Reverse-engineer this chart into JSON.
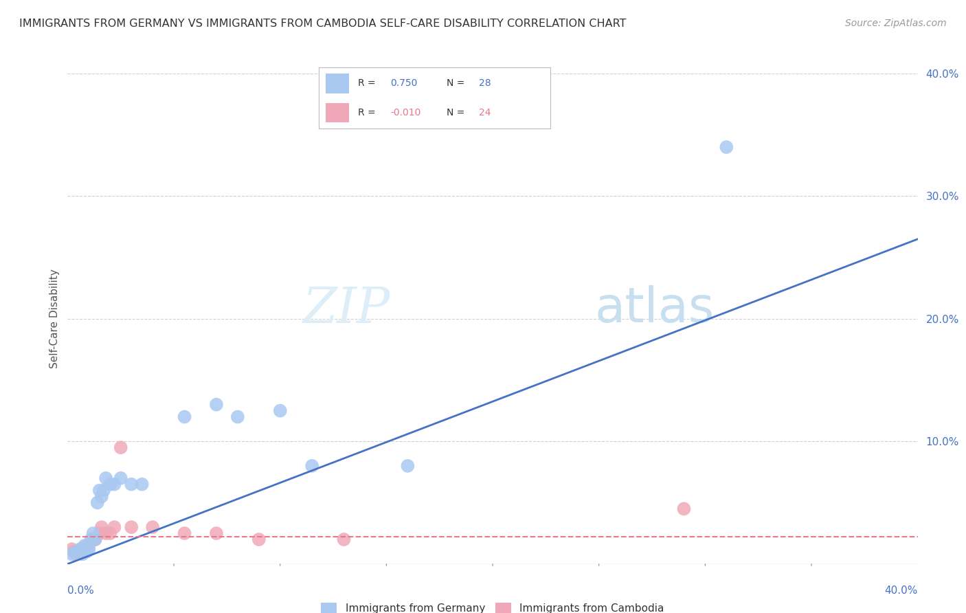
{
  "title": "IMMIGRANTS FROM GERMANY VS IMMIGRANTS FROM CAMBODIA SELF-CARE DISABILITY CORRELATION CHART",
  "source": "Source: ZipAtlas.com",
  "ylabel": "Self-Care Disability",
  "xlim": [
    0.0,
    0.4
  ],
  "ylim": [
    0.0,
    0.4
  ],
  "yticks": [
    0.1,
    0.2,
    0.3,
    0.4
  ],
  "ytick_labels": [
    "10.0%",
    "20.0%",
    "30.0%",
    "40.0%"
  ],
  "germany_color": "#a8c8f0",
  "cambodia_color": "#f0a8b8",
  "germany_line_color": "#4472c4",
  "cambodia_line_color": "#e8788a",
  "watermark_zip": "ZIP",
  "watermark_atlas": "atlas",
  "germany_x": [
    0.002,
    0.004,
    0.005,
    0.006,
    0.007,
    0.008,
    0.009,
    0.01,
    0.011,
    0.012,
    0.013,
    0.014,
    0.015,
    0.016,
    0.017,
    0.018,
    0.02,
    0.022,
    0.025,
    0.03,
    0.035,
    0.055,
    0.07,
    0.08,
    0.1,
    0.115,
    0.16,
    0.31
  ],
  "germany_y": [
    0.008,
    0.01,
    0.01,
    0.012,
    0.008,
    0.015,
    0.01,
    0.012,
    0.02,
    0.025,
    0.02,
    0.05,
    0.06,
    0.055,
    0.06,
    0.07,
    0.065,
    0.065,
    0.07,
    0.065,
    0.065,
    0.12,
    0.13,
    0.12,
    0.125,
    0.08,
    0.08,
    0.34
  ],
  "cambodia_x": [
    0.002,
    0.003,
    0.004,
    0.005,
    0.006,
    0.007,
    0.008,
    0.009,
    0.01,
    0.012,
    0.013,
    0.015,
    0.016,
    0.018,
    0.02,
    0.022,
    0.025,
    0.03,
    0.04,
    0.055,
    0.07,
    0.09,
    0.13,
    0.29
  ],
  "cambodia_y": [
    0.012,
    0.01,
    0.008,
    0.01,
    0.012,
    0.01,
    0.012,
    0.015,
    0.015,
    0.02,
    0.02,
    0.025,
    0.03,
    0.025,
    0.025,
    0.03,
    0.095,
    0.03,
    0.03,
    0.025,
    0.025,
    0.02,
    0.02,
    0.045
  ],
  "germany_line_x": [
    0.0,
    0.4
  ],
  "germany_line_y": [
    0.0,
    0.265
  ],
  "cambodia_line_x": [
    0.0,
    0.4
  ],
  "cambodia_line_y": [
    0.022,
    0.022
  ]
}
